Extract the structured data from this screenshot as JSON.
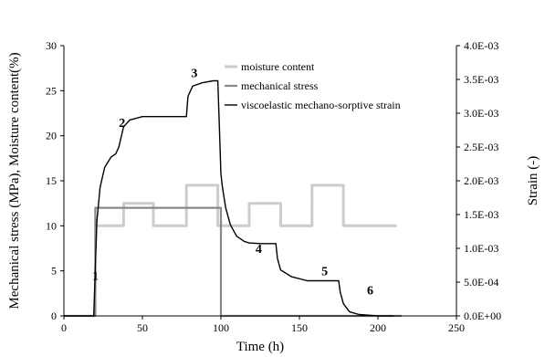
{
  "chart_data": {
    "type": "line",
    "xlabel": "Time (h)",
    "ylabel_left": "Mechanical stress (MPa), Moisture content(%)",
    "ylabel_right": "Strain (-)",
    "xlim": [
      0,
      250
    ],
    "ylim_left": [
      0,
      30
    ],
    "ylim_right": [
      0,
      0.004
    ],
    "x_ticks": [
      "0",
      "50",
      "100",
      "150",
      "200",
      "250"
    ],
    "y_left_ticks": [
      "0",
      "5",
      "10",
      "15",
      "20",
      "25",
      "30"
    ],
    "y_right_ticks": [
      "0.0E+00",
      "5.0E-04",
      "1.0E-03",
      "1.5E-03",
      "2.0E-03",
      "2.5E-03",
      "3.0E-03",
      "3.5E-03",
      "4.0E-03"
    ],
    "grid": false,
    "legend_position": "top-center",
    "series": [
      {
        "name": "moisture content",
        "axis": "left",
        "color": "#cccccc",
        "x": [
          20,
          38,
          38,
          57,
          57,
          78,
          78,
          98,
          98,
          118,
          118,
          138,
          138,
          158,
          158,
          178,
          178,
          198,
          198,
          212
        ],
        "y": [
          10,
          10,
          12.5,
          12.5,
          10,
          10,
          14.5,
          14.5,
          10,
          10,
          12.5,
          12.5,
          10,
          10,
          14.5,
          14.5,
          10,
          10,
          10,
          10
        ]
      },
      {
        "name": "mechanical stress",
        "axis": "left",
        "color": "#888888",
        "x": [
          0,
          20,
          20,
          100,
          100,
          215
        ],
        "y": [
          0,
          0,
          12,
          12,
          0,
          0
        ]
      },
      {
        "name": "viscoelastic mechano-sorptive strain",
        "axis": "right",
        "color": "#000000",
        "x": [
          0,
          19,
          20,
          21,
          23,
          26,
          30,
          33,
          35,
          36,
          38,
          42,
          50,
          60,
          78,
          79,
          82,
          88,
          95,
          98,
          99,
          100,
          101,
          103,
          106,
          110,
          115,
          118,
          125,
          135,
          136,
          138,
          145,
          155,
          175,
          176,
          178,
          182,
          188,
          195,
          200,
          210
        ],
        "y": [
          0,
          0,
          0.0007,
          0.0014,
          0.0019,
          0.0022,
          0.00235,
          0.0024,
          0.0025,
          0.0026,
          0.0028,
          0.0029,
          0.00295,
          0.00295,
          0.00295,
          0.00325,
          0.0034,
          0.00345,
          0.00348,
          0.00348,
          0.0028,
          0.0021,
          0.0019,
          0.0016,
          0.00135,
          0.00118,
          0.0011,
          0.00108,
          0.00107,
          0.00107,
          0.00085,
          0.00068,
          0.00058,
          0.00052,
          0.00052,
          0.00035,
          0.00018,
          6e-05,
          2e-05,
          1e-05,
          0,
          0
        ]
      }
    ],
    "annotations": [
      {
        "text": "1",
        "x": 18,
        "y": 4
      },
      {
        "text": "2",
        "x": 35,
        "y": 21
      },
      {
        "text": "3",
        "x": 81,
        "y": 26.5
      },
      {
        "text": "4",
        "x": 122,
        "y": 7
      },
      {
        "text": "5",
        "x": 164,
        "y": 4.5
      },
      {
        "text": "6",
        "x": 193,
        "y": 2.4
      }
    ]
  }
}
